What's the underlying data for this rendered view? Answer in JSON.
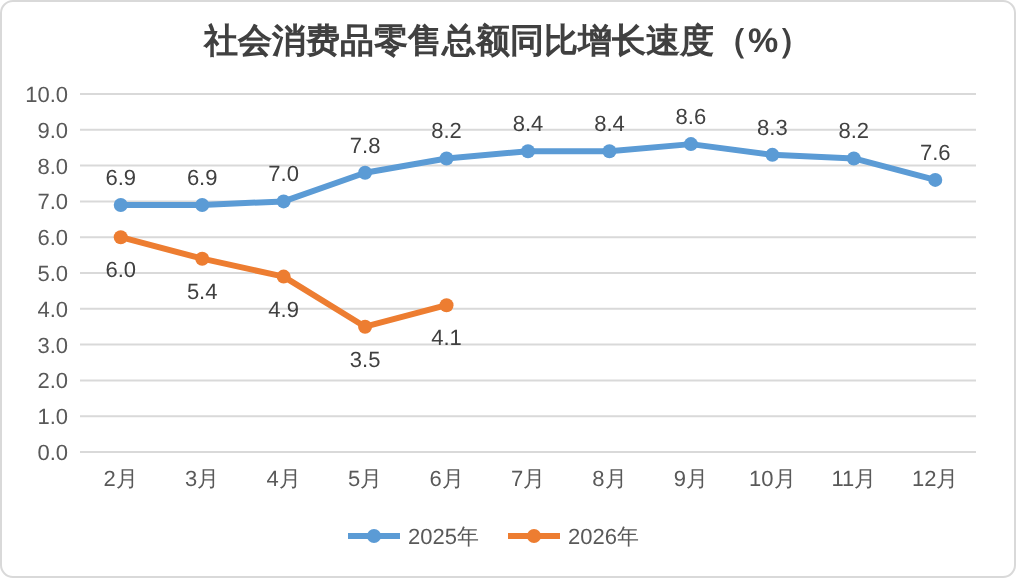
{
  "chart_data": {
    "type": "line",
    "title": "社会消费品零售总额同比增长速度（%）",
    "categories": [
      "2月",
      "3月",
      "4月",
      "5月",
      "6月",
      "7月",
      "8月",
      "9月",
      "10月",
      "11月",
      "12月"
    ],
    "series": [
      {
        "name": "2025年",
        "color": "#5b9bd5",
        "values": [
          6.9,
          6.9,
          7.0,
          7.8,
          8.2,
          8.4,
          8.4,
          8.6,
          8.3,
          8.2,
          7.6
        ],
        "value_labels": [
          "6.9",
          "6.9",
          "7.0",
          "7.8",
          "8.2",
          "8.4",
          "8.4",
          "8.6",
          "8.3",
          "8.2",
          "7.6"
        ]
      },
      {
        "name": "2026年",
        "color": "#ed7d31",
        "values": [
          6.0,
          5.4,
          4.9,
          3.5,
          4.1,
          null,
          null,
          null,
          null,
          null,
          null
        ],
        "value_labels": [
          "6.0",
          "5.4",
          "4.9",
          "3.5",
          "4.1",
          null,
          null,
          null,
          null,
          null,
          null
        ]
      }
    ],
    "ylim": [
      0,
      10
    ],
    "yticks": [
      {
        "value": 0,
        "label": "0.0"
      },
      {
        "value": 1,
        "label": "1.0"
      },
      {
        "value": 2,
        "label": "2.0"
      },
      {
        "value": 3,
        "label": "3.0"
      },
      {
        "value": 4,
        "label": "4.0"
      },
      {
        "value": 5,
        "label": "5.0"
      },
      {
        "value": 6,
        "label": "6.0"
      },
      {
        "value": 7,
        "label": "7.0"
      },
      {
        "value": 8,
        "label": "8.0"
      },
      {
        "value": 9,
        "label": "9.0"
      },
      {
        "value": 10,
        "label": "10.0"
      }
    ],
    "grid": "y",
    "legend": "bottom",
    "marker": "circle",
    "line_style": "solid"
  }
}
